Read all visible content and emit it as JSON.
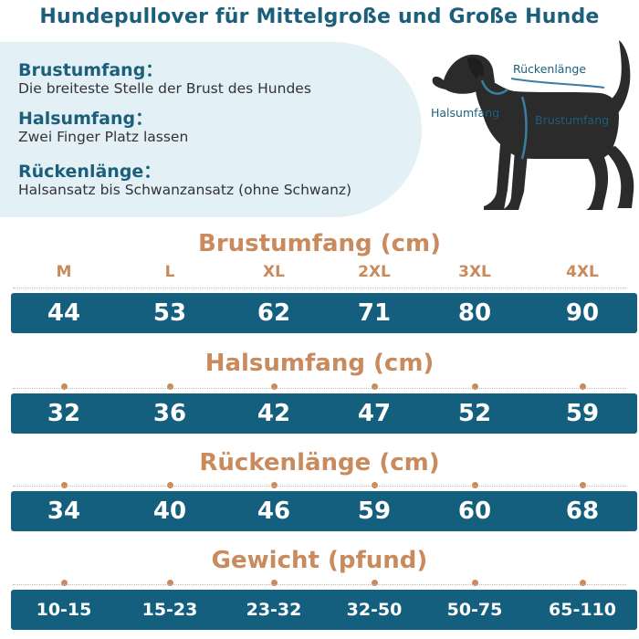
{
  "title": "Hundepullover für Mittelgroße und Große Hunde",
  "info": [
    {
      "term": "Brustumfang：",
      "desc": "Die breiteste Stelle der Brust des Hundes"
    },
    {
      "term": "Halsumfang：",
      "desc": "Zwei Finger Platz lassen"
    },
    {
      "term": "Rückenlänge：",
      "desc": "Halsansatz bis Schwanzansatz (ohne Schwanz)"
    }
  ],
  "dog_labels": {
    "back": "Rückenlänge",
    "neck": "Halsumfang",
    "chest": "Brustumfang"
  },
  "sizes": [
    "M",
    "L",
    "XL",
    "2XL",
    "3XL",
    "4XL"
  ],
  "sections": [
    {
      "title": "Brustumfang (cm)",
      "values": [
        "44",
        "53",
        "62",
        "71",
        "80",
        "90"
      ]
    },
    {
      "title": "Halsumfang (cm)",
      "values": [
        "32",
        "36",
        "42",
        "47",
        "52",
        "59"
      ]
    },
    {
      "title": "Rückenlänge (cm)",
      "values": [
        "34",
        "40",
        "46",
        "59",
        "60",
        "68"
      ]
    },
    {
      "title": "Gewicht (pfund)",
      "values": [
        "10-15",
        "15-23",
        "23-32",
        "32-50",
        "50-75",
        "65-110"
      ]
    }
  ],
  "colors": {
    "primary": "#1b5f7a",
    "bar": "#155f7e",
    "accent": "#c98a5d",
    "panel": "#e3f0f6"
  }
}
